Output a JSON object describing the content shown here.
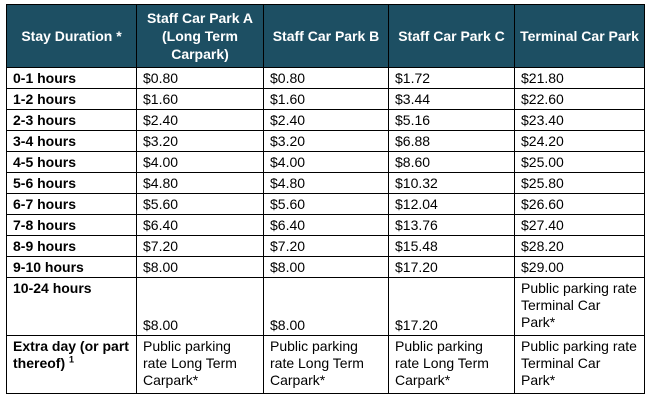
{
  "header": {
    "duration": "Stay Duration *",
    "park_a": "Staff Car Park A (Long Term Carpark)",
    "park_b": "Staff Car Park B",
    "park_c": "Staff Car Park C",
    "terminal": "Terminal Car Park"
  },
  "rows": [
    {
      "label": "0-1 hours",
      "a": "$0.80",
      "b": "$0.80",
      "c": "$1.72",
      "t": "$21.80"
    },
    {
      "label": "1-2 hours",
      "a": "$1.60",
      "b": "$1.60",
      "c": "$3.44",
      "t": "$22.60"
    },
    {
      "label": "2-3 hours",
      "a": "$2.40",
      "b": "$2.40",
      "c": "$5.16",
      "t": "$23.40"
    },
    {
      "label": "3-4 hours",
      "a": "$3.20",
      "b": "$3.20",
      "c": "$6.88",
      "t": "$24.20"
    },
    {
      "label": "4-5 hours",
      "a": "$4.00",
      "b": "$4.00",
      "c": "$8.60",
      "t": "$25.00"
    },
    {
      "label": "5-6 hours",
      "a": "$4.80",
      "b": "$4.80",
      "c": "$10.32",
      "t": "$25.80"
    },
    {
      "label": "6-7 hours",
      "a": "$5.60",
      "b": "$5.60",
      "c": "$12.04",
      "t": "$26.60"
    },
    {
      "label": "7-8 hours",
      "a": "$6.40",
      "b": "$6.40",
      "c": "$13.76",
      "t": "$27.40"
    },
    {
      "label": "8-9 hours",
      "a": "$7.20",
      "b": "$7.20",
      "c": "$15.48",
      "t": "$28.20"
    },
    {
      "label": "9-10 hours",
      "a": "$8.00",
      "b": "$8.00",
      "c": "$17.20",
      "t": "$29.00"
    },
    {
      "label": "10-24 hours",
      "a": "$8.00",
      "b": "$8.00",
      "c": "$17.20",
      "t": "Public parking rate Terminal Car Park*"
    }
  ],
  "extra": {
    "label": "Extra day (or part thereof)",
    "footnote": "1",
    "a": "Public parking rate Long Term Carpark*",
    "b": "Public parking rate Long Term Carpark*",
    "c": "Public parking rate Long Term Carpark*",
    "t": "Public parking rate Terminal Car Park*"
  }
}
